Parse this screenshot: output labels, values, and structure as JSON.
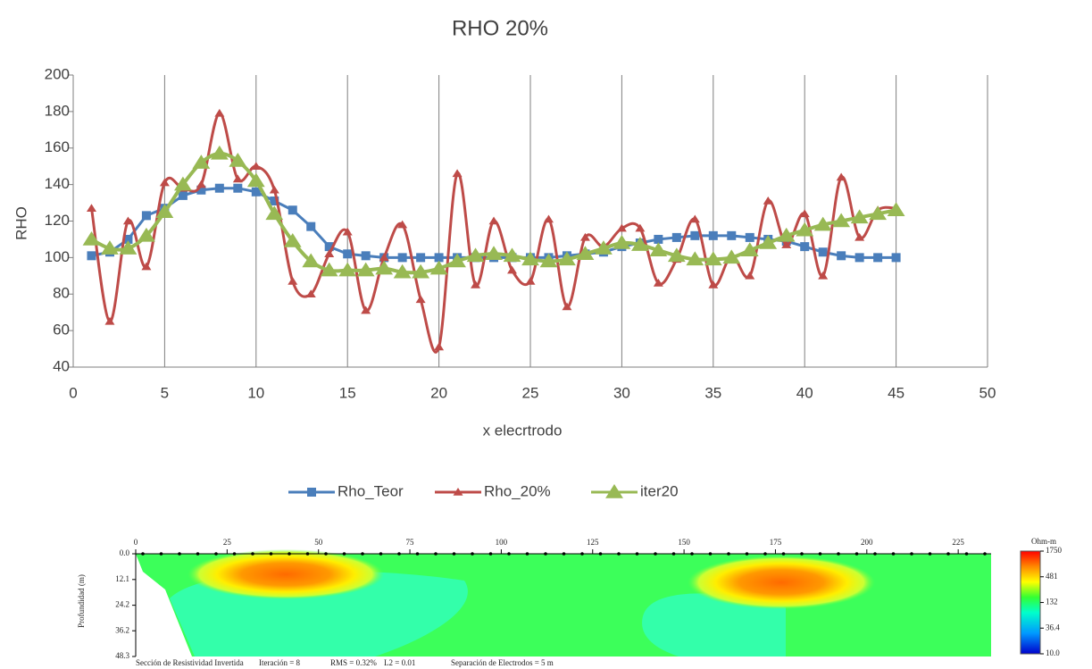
{
  "chart_data": {
    "type": "line",
    "title": "RHO 20%",
    "x_label": "x elecrtrodo",
    "y_label": "RHO",
    "x": [
      1,
      2,
      3,
      4,
      5,
      6,
      7,
      8,
      9,
      10,
      11,
      12,
      13,
      14,
      15,
      16,
      17,
      18,
      19,
      20,
      21,
      22,
      23,
      24,
      25,
      26,
      27,
      28,
      29,
      30,
      31,
      32,
      33,
      34,
      35,
      36,
      37,
      38,
      39,
      40,
      41,
      42,
      43,
      44,
      45
    ],
    "series": [
      {
        "name": "Rho_Teor",
        "color": "#4a7ebb",
        "marker": "square",
        "smooth": false,
        "values": [
          101,
          103,
          110,
          123,
          127,
          134,
          137,
          138,
          138,
          136,
          131,
          126,
          117,
          106,
          102,
          101,
          100,
          100,
          100,
          100,
          100,
          100,
          100,
          100,
          100,
          100,
          101,
          102,
          103,
          106,
          108,
          110,
          111,
          112,
          112,
          112,
          111,
          110,
          109,
          106,
          103,
          101,
          100,
          100,
          100
        ]
      },
      {
        "name": "Rho_20%",
        "color": "#be4b48",
        "marker": "triangle",
        "smooth": true,
        "values": [
          127,
          65,
          120,
          95,
          141,
          138,
          140,
          179,
          143,
          150,
          137,
          87,
          80,
          102,
          114,
          71,
          100,
          118,
          77,
          51,
          146,
          85,
          120,
          93,
          87,
          121,
          73,
          111,
          106,
          116,
          116,
          86,
          99,
          121,
          85,
          101,
          90,
          131,
          107,
          124,
          90,
          144,
          111,
          126,
          127
        ]
      },
      {
        "name": "iter20",
        "color": "#98b954",
        "marker": "big-triangle",
        "smooth": true,
        "values": [
          110,
          105,
          105,
          112,
          125,
          140,
          152,
          157,
          153,
          142,
          124,
          109,
          98,
          93,
          93,
          93,
          94,
          92,
          92,
          94,
          98,
          101,
          102,
          101,
          99,
          98,
          99,
          102,
          105,
          108,
          107,
          104,
          101,
          99,
          99,
          100,
          104,
          108,
          112,
          115,
          118,
          120,
          122,
          124,
          126
        ]
      }
    ],
    "xlim": [
      0,
      50
    ],
    "xticks": [
      0,
      5,
      10,
      15,
      20,
      25,
      30,
      35,
      40,
      45,
      50
    ],
    "ylim": [
      40,
      200
    ],
    "yticks": [
      40,
      60,
      80,
      100,
      120,
      140,
      160,
      180,
      200
    ],
    "grid": "vertical",
    "legend": "bottom"
  },
  "resistivity_section": {
    "xlim": [
      0,
      234
    ],
    "xticks": [
      0,
      25,
      50,
      75,
      100,
      125,
      150,
      175,
      200,
      225
    ],
    "y_label": "Profundidad (m)",
    "depth_lim": [
      0,
      48.3
    ],
    "depth_ticks": [
      {
        "value": 0,
        "label": "0.0"
      },
      12.1,
      24.2,
      36.2,
      48.3
    ],
    "color_scale_title": "Ohm-m",
    "color_scale_lim": [
      10,
      1750
    ],
    "color_scale_log": true,
    "color_scale": [
      1750,
      481,
      132,
      36.4,
      {
        "value": 10,
        "label": "10.0"
      }
    ],
    "footer": [
      "Sección de Resistividad Invertida",
      "Iteración = 8",
      "RMS = 0.32%",
      "L2 = 0.01",
      "Separación de Electrodos = 5 m"
    ]
  }
}
